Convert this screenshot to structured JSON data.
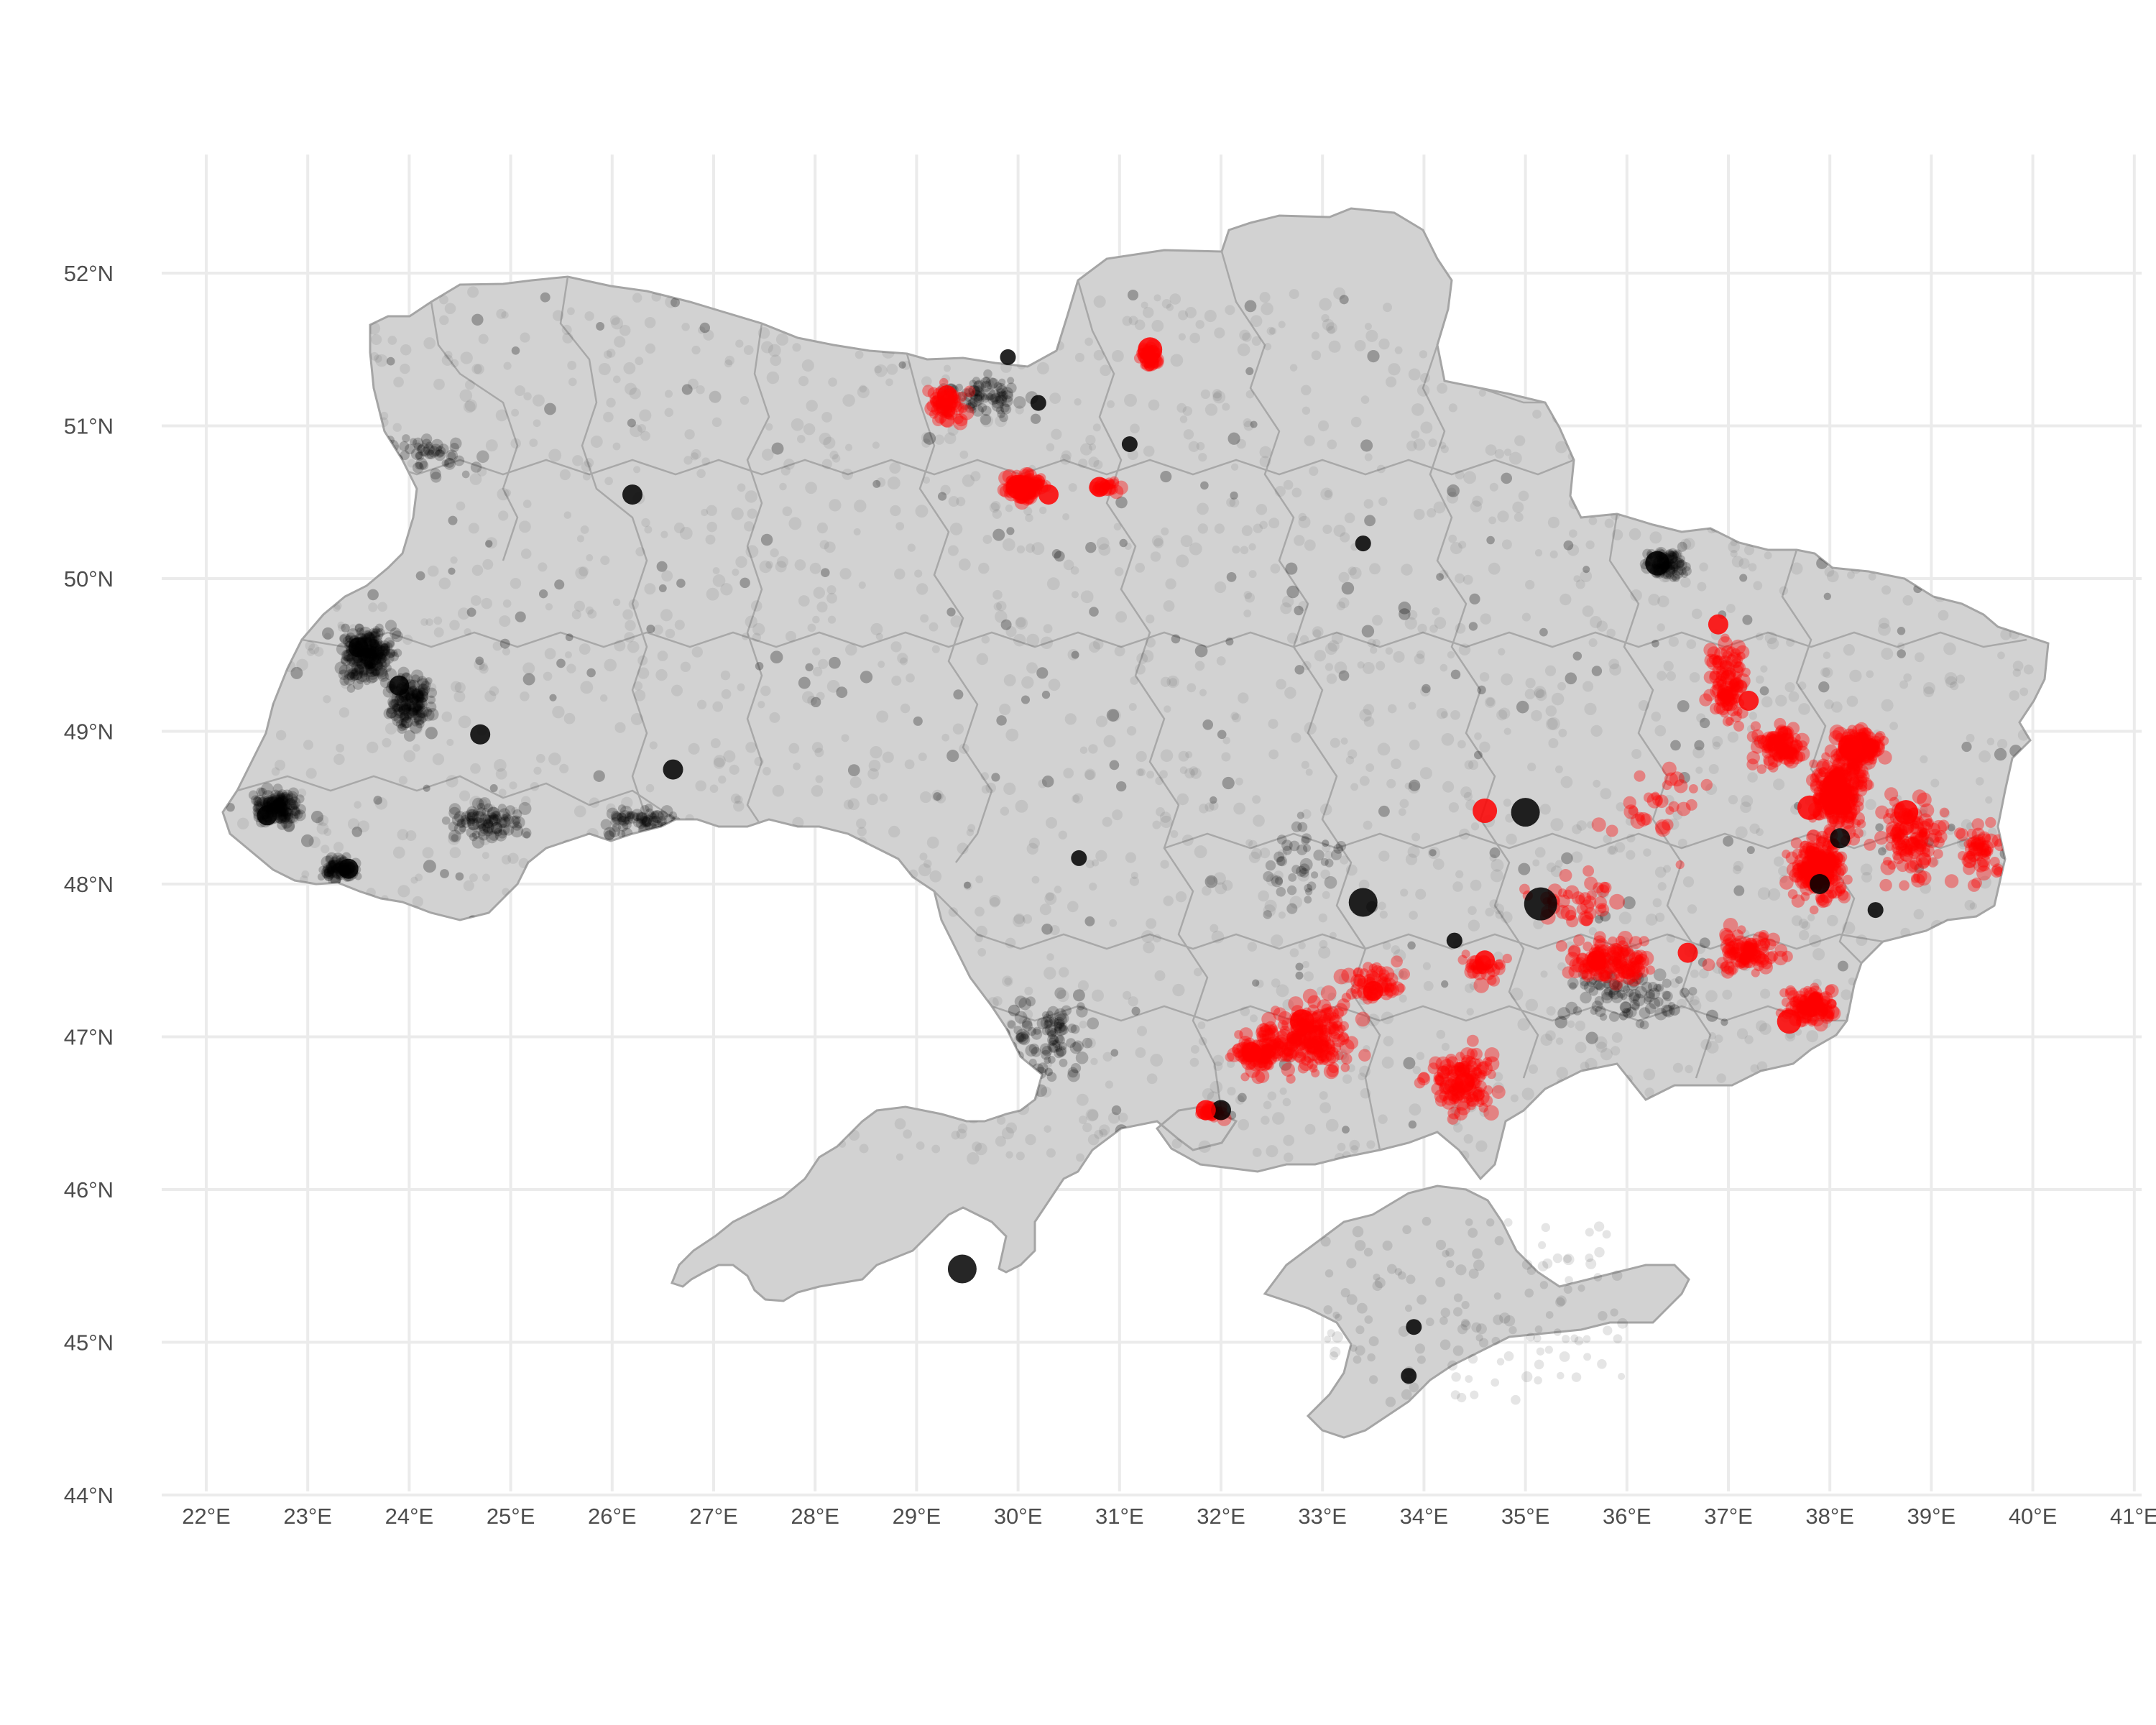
{
  "map": {
    "lon_ticks": [
      "22°E",
      "23°E",
      "24°E",
      "25°E",
      "26°E",
      "27°E",
      "28°E",
      "29°E",
      "30°E",
      "31°E",
      "32°E",
      "33°E",
      "34°E",
      "35°E",
      "36°E",
      "37°E",
      "38°E",
      "39°E",
      "40°E",
      "41°E"
    ],
    "lat_ticks": [
      "52°N",
      "51°N",
      "50°N",
      "49°N",
      "48°N",
      "47°N",
      "46°N",
      "45°N",
      "44°N"
    ]
  },
  "chart_data": {
    "type": "scatter",
    "title": "",
    "xlabel": "",
    "ylabel": "",
    "xlim": [
      21.8,
      41.0
    ],
    "ylim": [
      44.0,
      52.8
    ],
    "grid": true,
    "legend": "none",
    "colors": {
      "background_events": "#000000",
      "highlight_events": "#ff0000",
      "land": "#d2d2d2",
      "borders": "#a5a5a5",
      "grid": "#ebebeb"
    },
    "series": [
      {
        "color": "#000000",
        "points": [
          {
            "lon": 26.2,
            "lat": 50.55,
            "size": 3
          },
          {
            "lon": 24.7,
            "lat": 48.98,
            "size": 3
          },
          {
            "lon": 26.6,
            "lat": 48.75,
            "size": 3
          },
          {
            "lon": 30.6,
            "lat": 48.17,
            "size": 2
          },
          {
            "lon": 35.0,
            "lat": 48.47,
            "size": 5
          },
          {
            "lon": 35.15,
            "lat": 47.87,
            "size": 6
          },
          {
            "lon": 33.4,
            "lat": 47.88,
            "size": 5
          },
          {
            "lon": 34.3,
            "lat": 47.63,
            "size": 2
          },
          {
            "lon": 33.85,
            "lat": 44.78,
            "size": 2
          },
          {
            "lon": 38.45,
            "lat": 47.83,
            "size": 2
          },
          {
            "lon": 38.1,
            "lat": 48.3,
            "size": 3
          },
          {
            "lon": 29.45,
            "lat": 45.48,
            "size": 5
          },
          {
            "lon": 23.5,
            "lat": 49.55,
            "size": 3
          },
          {
            "lon": 23.9,
            "lat": 49.3,
            "size": 3
          },
          {
            "lon": 22.6,
            "lat": 48.45,
            "size": 3
          },
          {
            "lon": 23.4,
            "lat": 48.1,
            "size": 3
          },
          {
            "lon": 29.9,
            "lat": 51.45,
            "size": 2
          },
          {
            "lon": 30.2,
            "lat": 51.15,
            "size": 2
          },
          {
            "lon": 36.3,
            "lat": 50.1,
            "size": 4
          },
          {
            "lon": 33.4,
            "lat": 50.23,
            "size": 2
          },
          {
            "lon": 31.1,
            "lat": 50.88,
            "size": 2
          },
          {
            "lon": 32.0,
            "lat": 46.52,
            "size": 3
          },
          {
            "lon": 33.9,
            "lat": 45.1,
            "size": 2
          },
          {
            "lon": 37.9,
            "lat": 48.0,
            "size": 3
          }
        ]
      },
      {
        "color": "#ff0000",
        "points": [
          {
            "lon": 29.3,
            "lat": 51.2,
            "size": 3
          },
          {
            "lon": 30.0,
            "lat": 50.6,
            "size": 4
          },
          {
            "lon": 30.3,
            "lat": 50.55,
            "size": 3
          },
          {
            "lon": 31.3,
            "lat": 51.5,
            "size": 4
          },
          {
            "lon": 34.6,
            "lat": 48.48,
            "size": 4
          },
          {
            "lon": 38.75,
            "lat": 48.47,
            "size": 4
          },
          {
            "lon": 38.2,
            "lat": 48.9,
            "size": 4
          },
          {
            "lon": 37.8,
            "lat": 48.5,
            "size": 4
          },
          {
            "lon": 37.6,
            "lat": 47.1,
            "size": 4
          },
          {
            "lon": 32.8,
            "lat": 47.1,
            "size": 4
          },
          {
            "lon": 32.3,
            "lat": 46.9,
            "size": 3
          },
          {
            "lon": 33.5,
            "lat": 47.3,
            "size": 3
          },
          {
            "lon": 34.4,
            "lat": 46.7,
            "size": 3
          },
          {
            "lon": 35.7,
            "lat": 47.5,
            "size": 3
          },
          {
            "lon": 36.6,
            "lat": 47.55,
            "size": 3
          },
          {
            "lon": 37.2,
            "lat": 49.2,
            "size": 3
          },
          {
            "lon": 36.9,
            "lat": 49.7,
            "size": 3
          },
          {
            "lon": 34.6,
            "lat": 47.5,
            "size": 3
          },
          {
            "lon": 31.85,
            "lat": 46.52,
            "size": 3
          },
          {
            "lon": 30.8,
            "lat": 50.6,
            "size": 3
          }
        ]
      }
    ]
  }
}
